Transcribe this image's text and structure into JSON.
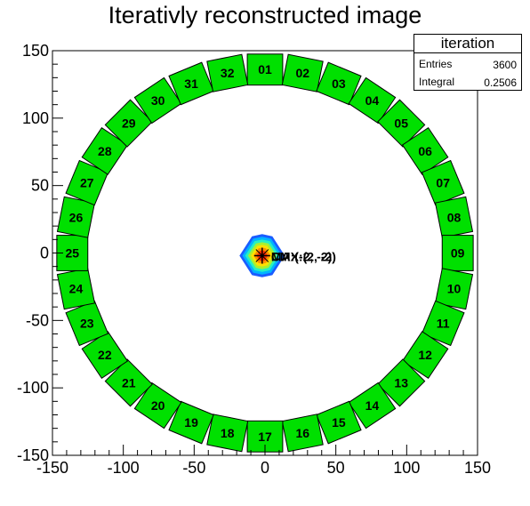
{
  "chart_data": {
    "type": "heatmap",
    "title": "Iterativly reconstructed image",
    "xlim": [
      -150,
      150
    ],
    "ylim": [
      -150,
      150
    ],
    "x_ticks": [
      "-150",
      "-100",
      "-50",
      "0",
      "50",
      "100",
      "150"
    ],
    "y_ticks": [
      "-150",
      "-100",
      "-50",
      "0",
      "50",
      "100",
      "150"
    ],
    "stats": {
      "name": "iteration",
      "entries_label": "Entries",
      "entries_value": "3600",
      "integral_label": "Integral",
      "integral_value": "0.2506"
    },
    "detectors": {
      "count": 32,
      "ring_radius": 136,
      "labels": [
        "01",
        "02",
        "03",
        "04",
        "05",
        "06",
        "07",
        "08",
        "09",
        "10",
        "11",
        "12",
        "13",
        "14",
        "15",
        "16",
        "17",
        "18",
        "19",
        "20",
        "21",
        "22",
        "23",
        "24",
        "25",
        "26",
        "27",
        "28",
        "29",
        "30",
        "31",
        "32"
      ],
      "color": "#00e000"
    },
    "hotspot": {
      "x": -2,
      "y": -2,
      "label": "MAX:(2, -2)",
      "label2": "CM:(-2, -2)"
    }
  }
}
